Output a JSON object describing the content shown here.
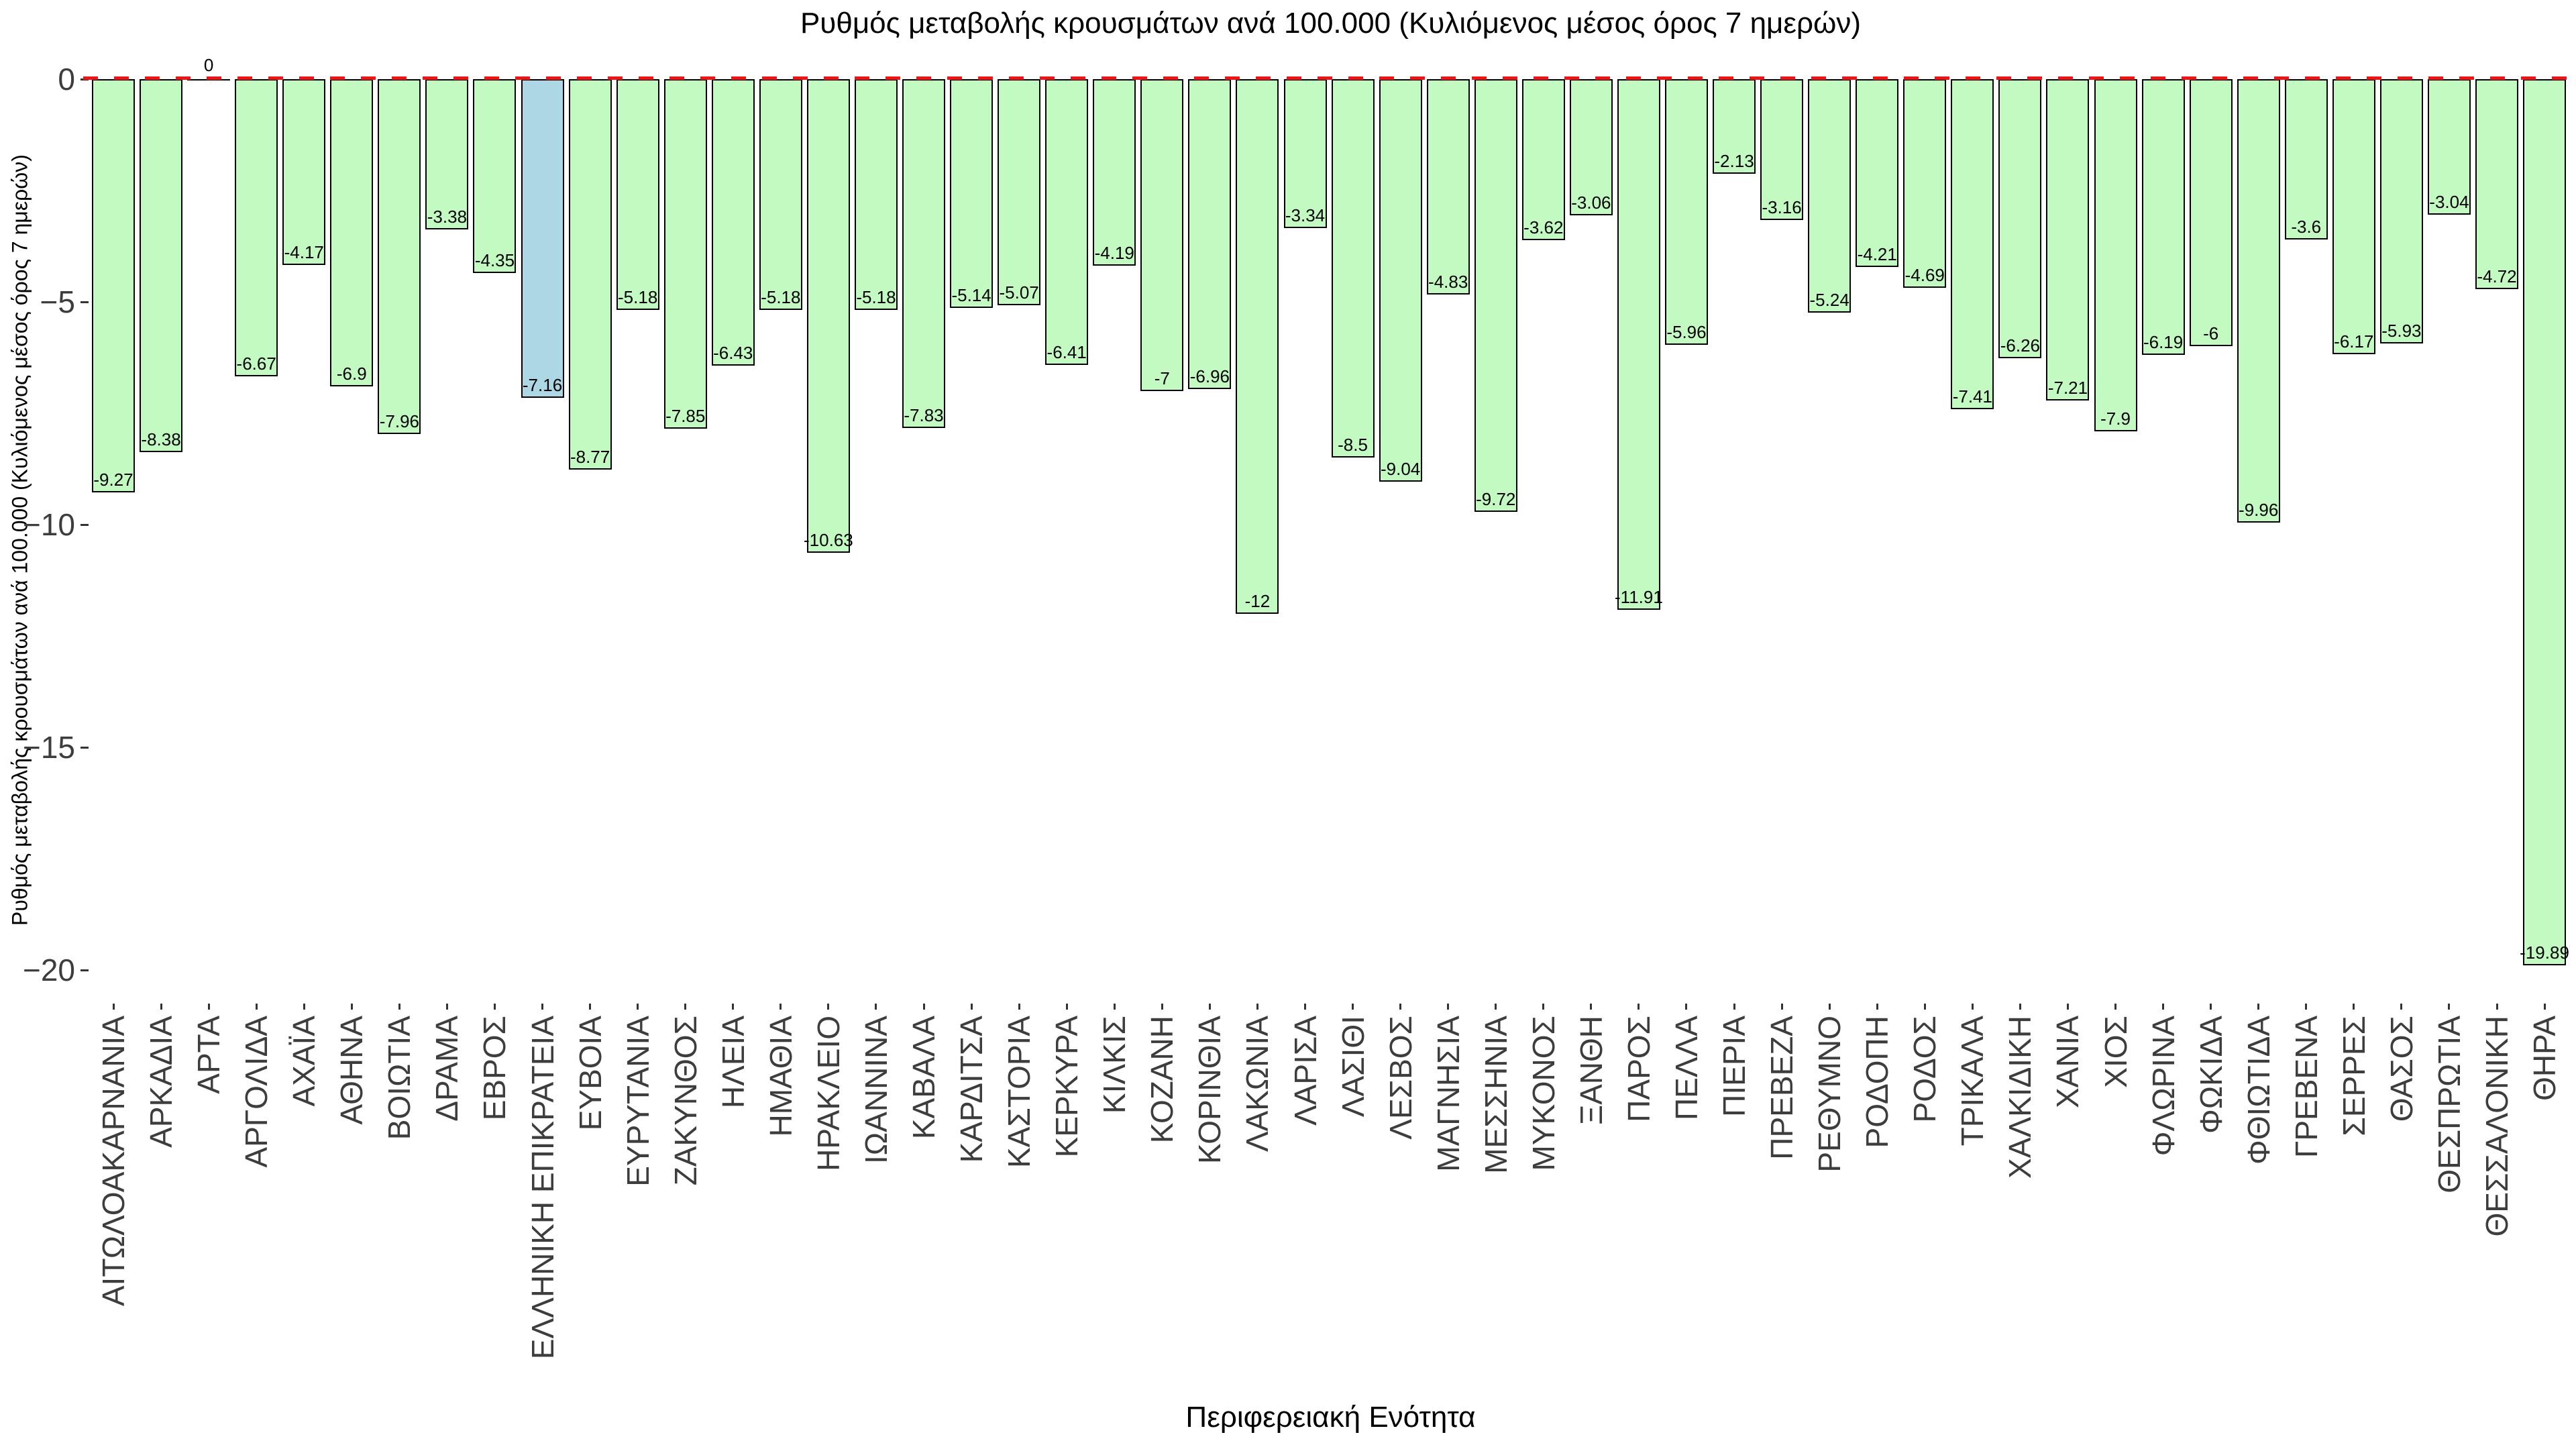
{
  "chart_data": {
    "type": "bar",
    "title": "Ρυθμός μεταβολής κρουσμάτων ανά 100.000 (Κυλιόμενος μέσος όρος 7 ημερών)",
    "xlabel": "Περιφερειακή Ενότητα",
    "ylabel": "Ρυθμός μεταβολής κρουσμάτων ανά 100.000 (Κυλιόμενος μέσος όρος 7 ημερών)",
    "categories": [
      "ΑΙΤΩΛΟΑΚΑΡΝΑΝΙΑ",
      "ΑΡΚΑΔΙΑ",
      "ΑΡΤΑ",
      "ΑΡΓΟΛΙΔΑ",
      "ΑΧΑΪΑ",
      "ΑΘΗΝΑ",
      "ΒΟΙΩΤΙΑ",
      "ΔΡΑΜΑ",
      "ΕΒΡΟΣ",
      "ΕΛΛΗΝΙΚΗ ΕΠΙΚΡΑΤΕΙΑ",
      "ΕΥΒΟΙΑ",
      "ΕΥΡΥΤΑΝΙΑ",
      "ΖΑΚΥΝΘΟΣ",
      "ΗΛΕΙΑ",
      "ΗΜΑΘΙΑ",
      "ΗΡΑΚΛΕΙΟ",
      "ΙΩΑΝΝΙΝΑ",
      "ΚΑΒΑΛΑ",
      "ΚΑΡΔΙΤΣΑ",
      "ΚΑΣΤΟΡΙΑ",
      "ΚΕΡΚΥΡΑ",
      "ΚΙΛΚΙΣ",
      "ΚΟΖΑΝΗ",
      "ΚΟΡΙΝΘΙΑ",
      "ΛΑΚΩΝΙΑ",
      "ΛΑΡΙΣΑ",
      "ΛΑΣΙΘΙ",
      "ΛΕΣΒΟΣ",
      "ΜΑΓΝΗΣΙΑ",
      "ΜΕΣΣΗΝΙΑ",
      "ΜΥΚΟΝΟΣ",
      "ΞΑΝΘΗ",
      "ΠΑΡΟΣ",
      "ΠΕΛΛΑ",
      "ΠΙΕΡΙΑ",
      "ΠΡΕΒΕΖΑ",
      "ΡΕΘΥΜΝΟ",
      "ΡΟΔΟΠΗ",
      "ΡΟΔΟΣ",
      "ΤΡΙΚΑΛΑ",
      "ΧΑΛΚΙΔΙΚΗ",
      "ΧΑΝΙΑ",
      "ΧΙΟΣ",
      "ΦΛΩΡΙΝΑ",
      "ΦΩΚΙΔΑ",
      "ΦΘΙΩΤΙΔΑ",
      "ΓΡΕΒΕΝΑ",
      "ΣΕΡΡΕΣ",
      "ΘΑΣΟΣ",
      "ΘΕΣΠΡΩΤΙΑ",
      "ΘΕΣΣΑΛΟΝΙΚΗ",
      "ΘΗΡΑ"
    ],
    "values": [
      -9.27,
      -8.38,
      0,
      -6.67,
      -4.17,
      -6.9,
      -7.96,
      -3.38,
      -4.35,
      -7.16,
      -8.77,
      -5.18,
      -7.85,
      -6.43,
      -5.18,
      -10.63,
      -5.18,
      -7.83,
      -5.14,
      -5.07,
      -6.41,
      -4.19,
      -7,
      -6.96,
      -12,
      -3.34,
      -8.5,
      -9.04,
      -4.83,
      -9.72,
      -3.62,
      -3.06,
      -11.91,
      -5.96,
      -2.13,
      -3.16,
      -5.24,
      -4.21,
      -4.69,
      -7.41,
      -6.26,
      -7.21,
      -7.9,
      -6.19,
      -6,
      -9.96,
      -3.6,
      -6.17,
      -5.93,
      -3.04,
      -4.72,
      -19.89
    ],
    "highlight_category": "ΕΛΛΗΝΙΚΗ ΕΠΙΚΡΑΤΕΙΑ",
    "yticks": [
      0,
      -5,
      -10,
      -15,
      -20
    ],
    "ylim": [
      -20.9,
      0
    ],
    "grid": false,
    "legend": "none",
    "zero_line": {
      "value": 0,
      "style": "dashed"
    },
    "colors": {
      "bar_fill": "#c2fac2",
      "highlight_fill": "#aed7e6",
      "bar_border": "#000000",
      "zero_line": "#f01515",
      "tick_text": "#3d3d3d",
      "text": "#000000",
      "background": "#ffffff"
    }
  }
}
